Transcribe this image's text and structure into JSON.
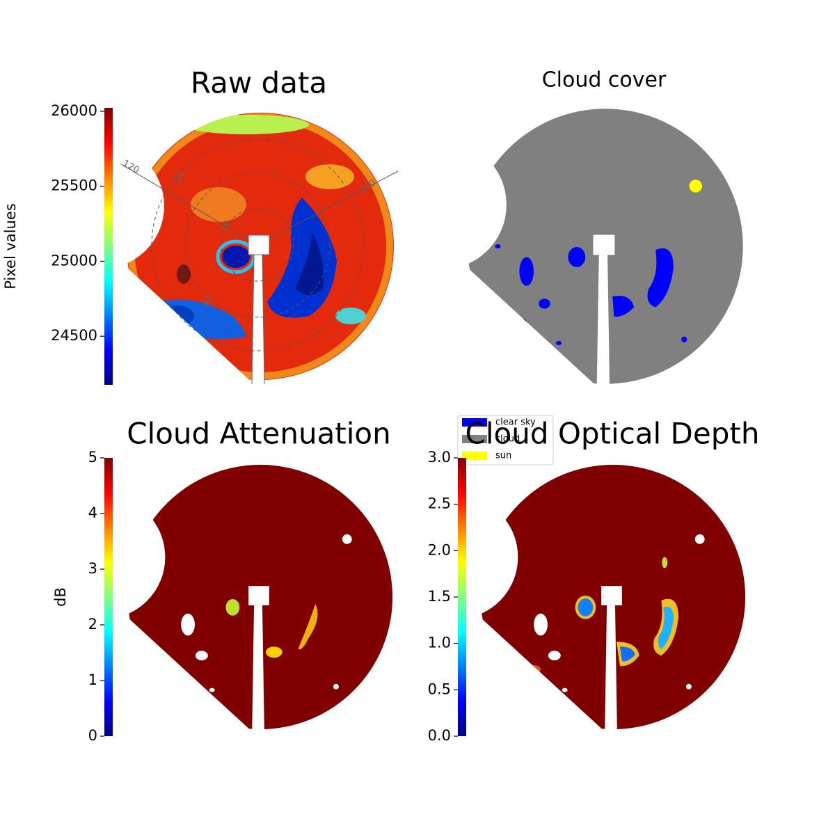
{
  "chart_data": [
    {
      "type": "image",
      "title": "Raw data",
      "colormap": "jet",
      "ylabel": "Pixel values",
      "ylim": [
        24176,
        26023
      ],
      "yticks": [
        24500,
        25000,
        25500,
        26000
      ],
      "annotations": [
        "120",
        "60",
        "20",
        "40",
        "240"
      ]
    },
    {
      "type": "image",
      "title": "Cloud cover",
      "legend": [
        {
          "name": "clear sky",
          "color": "#0000ff"
        },
        {
          "name": "cloud",
          "color": "#808080"
        },
        {
          "name": "sun",
          "color": "#ffff00"
        }
      ]
    },
    {
      "type": "image",
      "title": "Cloud Attenuation",
      "colormap": "jet",
      "ylabel": "dB",
      "ylim": [
        0,
        5
      ],
      "yticks": [
        0,
        1,
        2,
        3,
        4,
        5
      ]
    },
    {
      "type": "image",
      "title": "Cloud Optical Depth",
      "colormap": "jet",
      "ylim": [
        0,
        3
      ],
      "yticks": [
        {
          "value": 0,
          "label": "0.0"
        },
        {
          "value": 0.5,
          "label": "0.5"
        },
        {
          "value": 1,
          "label": "1.0"
        },
        {
          "value": 1.5,
          "label": "1.5"
        },
        {
          "value": 2,
          "label": "2.0"
        },
        {
          "value": 2.5,
          "label": "2.5"
        },
        {
          "value": 3,
          "label": "3.0"
        }
      ]
    }
  ]
}
